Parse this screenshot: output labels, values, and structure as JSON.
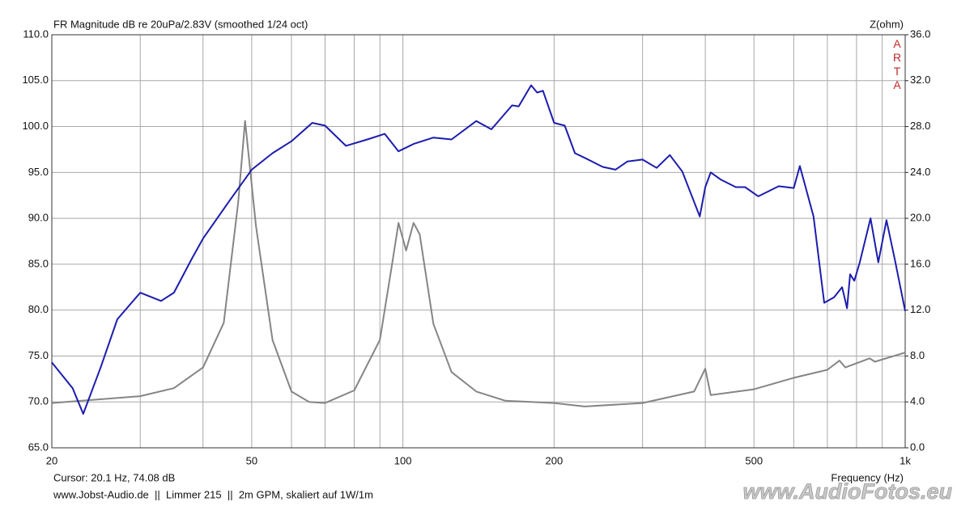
{
  "chart_data": {
    "type": "line",
    "title": "FR Magnitude dB re 20uPa/2.83V (smoothed 1/24 oct)",
    "y2_label": "Z(ohm)",
    "brand": "ARTA",
    "x_label": "Frequency (Hz)",
    "cursor": "Cursor: 20.1 Hz, 74.08 dB",
    "footer": "www.Jobst-Audio.de  ||  Limmer 215  ||  2m GPM, skaliert auf 1W/1m",
    "watermark": "www.AudioFotos.eu",
    "xscale": "log",
    "grid": true,
    "xlim": [
      20,
      1000
    ],
    "xticks": [
      20,
      50,
      100,
      200,
      500,
      {
        "value": 1000,
        "label": "1k"
      }
    ],
    "xgrid_minor": [
      30,
      40,
      60,
      70,
      80,
      90,
      300,
      400,
      600,
      700,
      800,
      900
    ],
    "ylim": [
      65,
      110
    ],
    "yticks": [
      {
        "value": 65,
        "label": "65.0"
      },
      {
        "value": 70,
        "label": "70.0"
      },
      {
        "value": 75,
        "label": "75.0"
      },
      {
        "value": 80,
        "label": "80.0"
      },
      {
        "value": 85,
        "label": "85.0"
      },
      {
        "value": 90,
        "label": "90.0"
      },
      {
        "value": 95,
        "label": "95.0"
      },
      {
        "value": 100,
        "label": "100.0"
      },
      {
        "value": 105,
        "label": "105.0"
      },
      {
        "value": 110,
        "label": "110.0"
      }
    ],
    "y2lim": [
      0,
      36
    ],
    "y2ticks": [
      {
        "value": 0,
        "label": "0.0"
      },
      {
        "value": 4,
        "label": "4.0"
      },
      {
        "value": 8,
        "label": "8.0"
      },
      {
        "value": 12,
        "label": "12.0"
      },
      {
        "value": 16,
        "label": "16.0"
      },
      {
        "value": 20,
        "label": "20.0"
      },
      {
        "value": 24,
        "label": "24.0"
      },
      {
        "value": 28,
        "label": "28.0"
      },
      {
        "value": 32,
        "label": "32.0"
      },
      {
        "value": 36,
        "label": "36.0"
      }
    ],
    "series": [
      {
        "color": "#1c1cae",
        "axis": "y",
        "x": [
          20,
          22,
          23.1,
          25,
          27,
          30,
          33,
          35,
          38,
          40,
          45,
          50,
          55,
          60,
          66,
          70,
          77,
          85,
          92,
          98,
          105,
          115,
          125,
          140,
          150,
          165,
          170,
          180,
          185,
          190,
          200,
          210,
          220,
          230,
          250,
          265,
          280,
          300,
          320,
          340,
          360,
          390,
          400,
          410,
          430,
          460,
          480,
          510,
          560,
          600,
          617,
          657,
          690,
          722,
          749,
          766,
          777,
          792,
          812,
          853,
          884,
          918,
          953,
          1000
        ],
        "values": [
          74.3,
          71.5,
          68.7,
          73.7,
          79.0,
          81.9,
          81.0,
          81.9,
          85.6,
          87.8,
          91.8,
          95.3,
          97.1,
          98.4,
          100.4,
          100.1,
          97.9,
          98.6,
          99.2,
          97.3,
          98.1,
          98.8,
          98.6,
          100.6,
          99.7,
          102.3,
          102.2,
          104.5,
          103.7,
          103.9,
          100.4,
          100.1,
          97.1,
          96.6,
          95.6,
          95.3,
          96.2,
          96.4,
          95.5,
          96.9,
          95.1,
          90.2,
          93.4,
          95.0,
          94.2,
          93.4,
          93.4,
          92.4,
          93.5,
          93.3,
          95.7,
          90.2,
          80.8,
          81.4,
          82.5,
          80.2,
          83.9,
          83.2,
          85.2,
          90.0,
          85.2,
          89.8,
          85.6,
          79.9
        ]
      },
      {
        "color": "#858585",
        "axis": "y2",
        "x": [
          20,
          30,
          35,
          40,
          44,
          47,
          48.5,
          51,
          55,
          60,
          65,
          70,
          80,
          90,
          95,
          98,
          101.5,
          105,
          108,
          115,
          125,
          140,
          160,
          200,
          230,
          300,
          380,
          400,
          410,
          500,
          600,
          700,
          740,
          760,
          850,
          870,
          1000
        ],
        "values": [
          3.9,
          4.5,
          5.2,
          7.0,
          10.9,
          21.4,
          28.5,
          19.3,
          9.4,
          4.9,
          4.0,
          3.9,
          5.0,
          9.4,
          15.8,
          19.6,
          17.2,
          19.6,
          18.6,
          10.8,
          6.6,
          4.9,
          4.1,
          3.9,
          3.6,
          3.9,
          4.9,
          6.9,
          4.6,
          5.1,
          6.1,
          6.8,
          7.6,
          7.0,
          7.8,
          7.5,
          8.3
        ]
      }
    ]
  }
}
